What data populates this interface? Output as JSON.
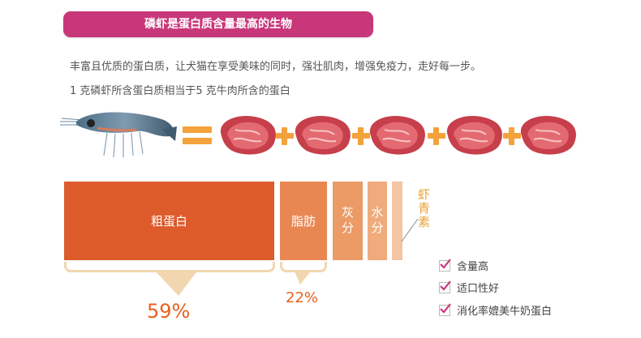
{
  "banner": {
    "title": "磷虾是蛋白质含量最高的生物"
  },
  "description": {
    "line1": "丰富且优质的蛋白质，让犬猫在享受美味的同时，强壮肌肉，增强免疫力，走好每一步。",
    "line2": "1 克磷虾所含蛋白质相当于5 克牛肉所含的蛋白"
  },
  "composition": {
    "protein": "粗蛋白",
    "fat": "脂肪",
    "ash": "灰分",
    "water": "水分",
    "astaxanthin": "虾青素",
    "protein_percent": "59%",
    "fat_percent": "22%",
    "protein_percent_value": 59,
    "fat_percent_value": 22
  },
  "equation": {
    "krill_count": 1,
    "beef_count": 5
  },
  "checklist": [
    {
      "label": "含量高",
      "checked": true
    },
    {
      "label": "适口性好",
      "checked": true
    },
    {
      "label": "消化率媲美牛奶蛋白",
      "checked": true
    }
  ],
  "colors": {
    "banner": "#c8377a",
    "protein_bar": "#de5b2c",
    "fat_bar": "#e98753",
    "ash_bar": "#ec9a66",
    "water_bar": "#f0ab7c",
    "accent_orange": "#f4a23c",
    "percent_text": "#e8601f",
    "check_mark": "#c8377a"
  }
}
